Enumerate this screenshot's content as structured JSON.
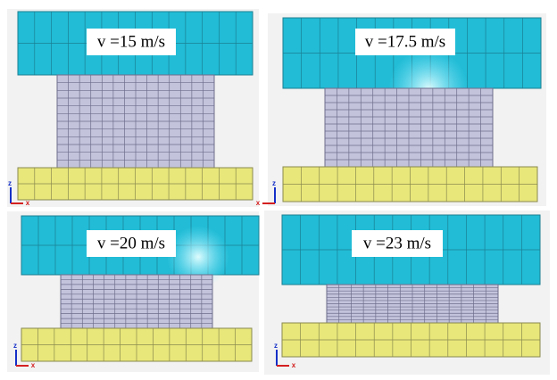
{
  "panels": [
    {
      "label": "v =15 m/s",
      "axes": {
        "vertical": "z",
        "horizontal": "x"
      }
    },
    {
      "label": "v =17.5 m/s",
      "axes": {
        "vertical": "z",
        "horizontal": "x"
      }
    },
    {
      "label": "v =20 m/s",
      "axes": {
        "vertical": "z",
        "horizontal": "x"
      }
    },
    {
      "label": "v =23 m/s",
      "axes": {
        "vertical": "z",
        "horizontal": "x"
      }
    }
  ]
}
